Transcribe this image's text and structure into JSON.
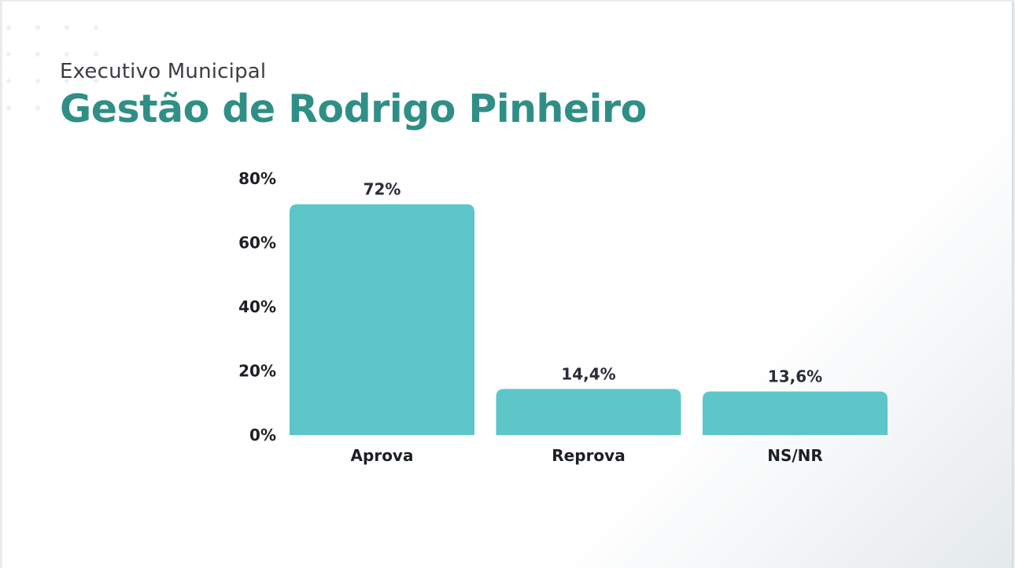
{
  "header": {
    "subtitle": "Executivo Municipal",
    "title": "Gestão de Rodrigo Pinheiro"
  },
  "colors": {
    "title": "#2f8f86",
    "bar": "#5dc6c9",
    "text": "#1e1f24"
  },
  "chart_data": {
    "type": "bar",
    "title": "",
    "xlabel": "",
    "ylabel": "",
    "categories": [
      "Aprova",
      "Reprova",
      "NS/NR"
    ],
    "values": [
      72,
      14.4,
      13.6
    ],
    "value_labels": [
      "72%",
      "14,4%",
      "13,6%"
    ],
    "ylim": [
      0,
      80
    ],
    "yticks": [
      0,
      20,
      40,
      60,
      80
    ],
    "ytick_labels": [
      "0%",
      "20%",
      "40%",
      "60%",
      "80%"
    ],
    "grid": false,
    "legend": "none"
  }
}
